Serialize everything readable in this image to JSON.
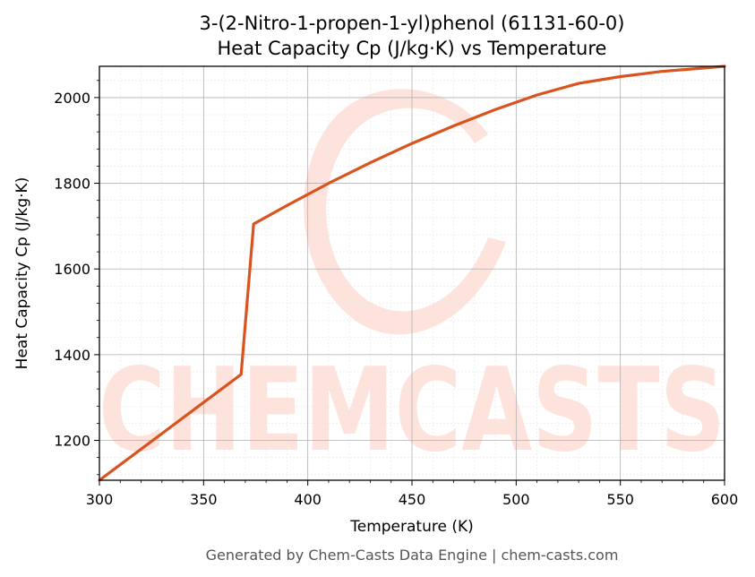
{
  "watermark": {
    "logo_text": "CHEMCASTS",
    "color": "#fde3dc"
  },
  "footer": "Generated by Chem-Casts Data Engine | chem-casts.com",
  "chart_data": {
    "type": "line",
    "title": "3-(2-Nitro-1-propen-1-yl)phenol (61131-60-0)",
    "subtitle": "Heat Capacity Cp (J/kg·K) vs Temperature",
    "xlabel": "Temperature (K)",
    "ylabel": "Heat Capacity Cp (J/kg·K)",
    "xlim": [
      300,
      600
    ],
    "ylim": [
      1107,
      2073
    ],
    "xticks": [
      300,
      350,
      400,
      450,
      500,
      550,
      600
    ],
    "yticks": [
      1200,
      1400,
      1600,
      1800,
      2000
    ],
    "grid": true,
    "line_color": "#d9531e",
    "series": [
      {
        "x": [
          300,
          368,
          374,
          390,
          410,
          430,
          450,
          470,
          490,
          510,
          530,
          550,
          570,
          600
        ],
        "y": [
          1107,
          1354,
          1705,
          1748,
          1800,
          1848,
          1893,
          1934,
          1972,
          2006,
          2033,
          2049,
          2061,
          2073
        ]
      }
    ]
  }
}
